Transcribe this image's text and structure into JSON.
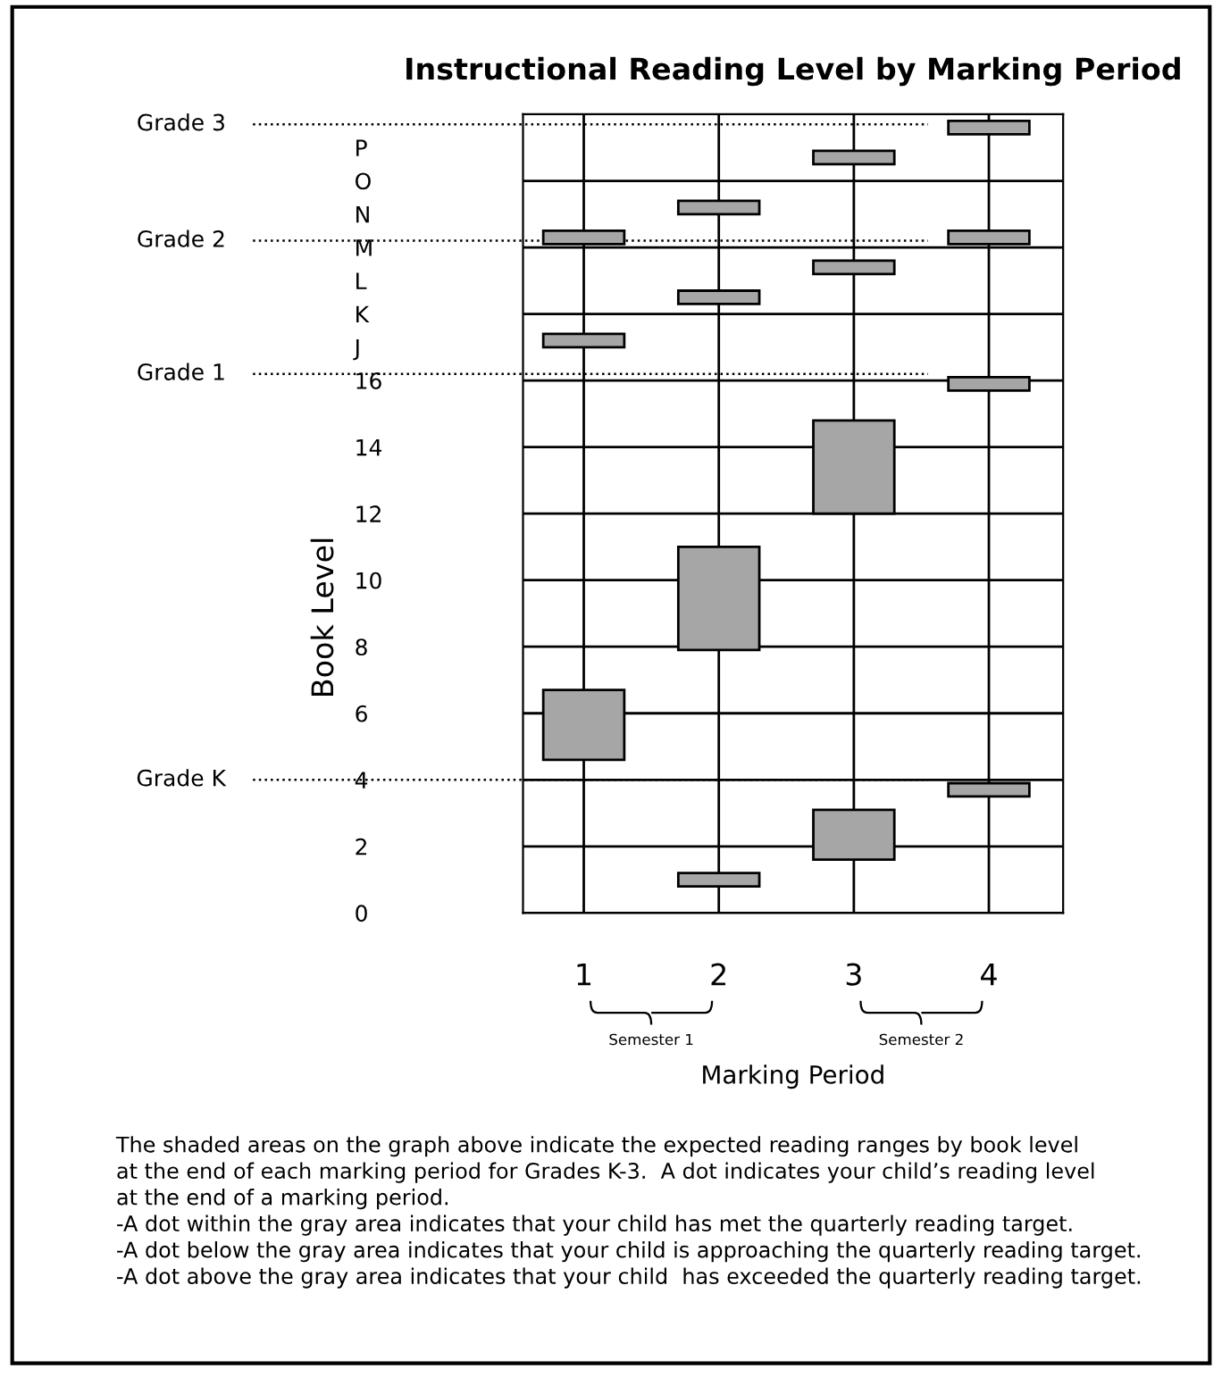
{
  "chart_data": {
    "type": "bar",
    "title": "Instructional Reading Level by Marking Period",
    "xlabel": "Marking Period",
    "ylabel": "Book Level",
    "categories": [
      "1",
      "2",
      "3",
      "4"
    ],
    "series": [
      {
        "color": "#a6a6a6",
        "base": [
          4.6,
          0.8,
          1.6,
          3.5
        ],
        "values": [
          2.1,
          0.4,
          1.5,
          0.4
        ]
      },
      {
        "color": "#a6a6a6",
        "base": [
          17.0,
          7.9,
          12.0,
          15.7
        ],
        "values": [
          0.4,
          3.1,
          2.8,
          0.4
        ]
      },
      {
        "color": "#a6a6a6",
        "base": [
          20.1,
          18.3,
          19.2,
          20.1
        ],
        "values": [
          0.4,
          0.4,
          0.4,
          0.4
        ]
      },
      {
        "color": "#a6a6a6",
        "base": [
          null,
          21.0,
          22.5,
          23.4
        ],
        "values": [
          null,
          0.4,
          0.4,
          0.4
        ]
      }
    ],
    "ylim": [
      0,
      24
    ],
    "yticks": [
      0,
      2,
      4,
      6,
      8,
      10,
      12,
      14,
      16,
      {
        "value": 17,
        "label": "J"
      },
      {
        "value": 18,
        "label": "K"
      },
      {
        "value": 19,
        "label": "L"
      },
      {
        "value": 20,
        "label": "M"
      },
      {
        "value": 21,
        "label": "N"
      },
      {
        "value": 22,
        "label": "O"
      },
      {
        "value": 23,
        "label": "P"
      }
    ],
    "grid": true,
    "ref_lines": [
      {
        "axis": "y",
        "value": 23.7,
        "label": "Grade 3",
        "line_style": "dotted"
      },
      {
        "axis": "y",
        "value": 20.2,
        "label": "Grade 2",
        "line_style": "dotted"
      },
      {
        "axis": "y",
        "value": 16.2,
        "label": "Grade 1",
        "line_style": "dotted"
      },
      {
        "axis": "y",
        "value": 4.0,
        "label": "Grade K",
        "line_style": "dotted"
      }
    ],
    "annotations": [
      "Semester 1",
      "Semester 2",
      "The shaded areas on the graph above indicate the expected reading ranges by book level\nat the end of each marking period for Grades K-3.  A dot indicates your child’s reading level\nat the end of a marking period.\n-A dot within the gray area indicates that your child has met the quarterly reading target.\n-A dot below the gray area indicates that your child is approaching the quarterly reading target.\n-A dot above the gray area indicates that your child  has exceeded the quarterly reading target."
    ]
  }
}
